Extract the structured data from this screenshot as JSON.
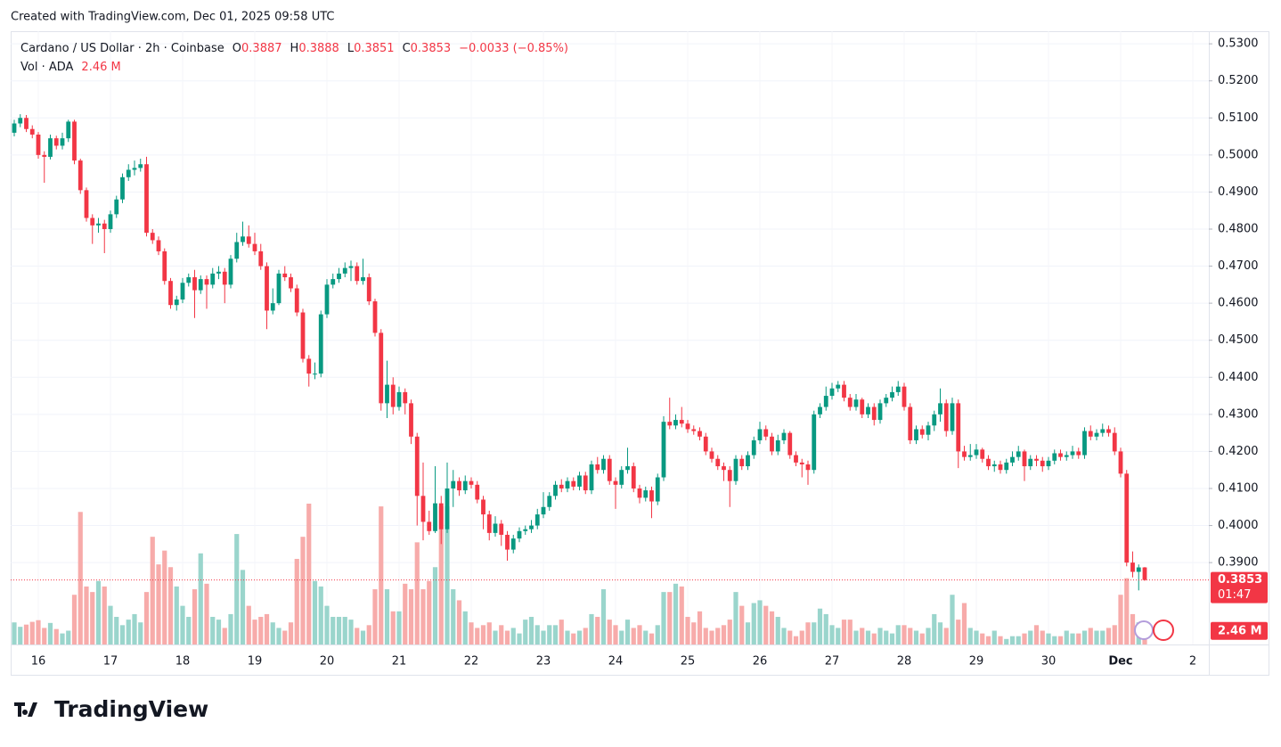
{
  "header": {
    "created": "Created with TradingView.com, Dec 01, 2025 09:58 UTC",
    "symbol": "Cardano / US Dollar · 2h · Coinbase",
    "o_key": "O",
    "o": "0.3887",
    "h_key": "H",
    "h": "0.3888",
    "l_key": "L",
    "l": "0.3851",
    "c_key": "C",
    "c": "0.3853",
    "change": "−0.0033 (−0.85%)",
    "vol_key": "Vol · ADA",
    "vol": "2.46 M"
  },
  "footer": {
    "brand": "TradingView"
  },
  "price_tag": {
    "price": "0.3853",
    "countdown": "01:47",
    "vol": "2.46 M"
  },
  "chart_data": {
    "type": "candlestick",
    "up_color": "#089981",
    "down_color": "#f23645",
    "vol_up_color": "#9ad5cc",
    "vol_down_color": "#f7abaa",
    "grid": true,
    "ylim": [
      0.3679,
      0.5334
    ],
    "yticks": [
      {
        "value": 0.39,
        "label": "0.3900"
      },
      {
        "value": 0.4,
        "label": "0.4000"
      },
      {
        "value": 0.41,
        "label": "0.4100"
      },
      {
        "value": 0.42,
        "label": "0.4200"
      },
      {
        "value": 0.43,
        "label": "0.4300"
      },
      {
        "value": 0.44,
        "label": "0.4400"
      },
      {
        "value": 0.45,
        "label": "0.4500"
      },
      {
        "value": 0.46,
        "label": "0.4600"
      },
      {
        "value": 0.47,
        "label": "0.4700"
      },
      {
        "value": 0.48,
        "label": "0.4800"
      },
      {
        "value": 0.49,
        "label": "0.4900"
      },
      {
        "value": 0.5,
        "label": "0.5000"
      },
      {
        "value": 0.51,
        "label": "0.5100"
      },
      {
        "value": 0.52,
        "label": "0.5200"
      },
      {
        "value": 0.53,
        "label": "0.5300"
      }
    ],
    "xtick_labels": [
      "16",
      "17",
      "18",
      "19",
      "20",
      "21",
      "22",
      "23",
      "24",
      "25",
      "26",
      "27",
      "28",
      "29",
      "30",
      "Dec",
      "2"
    ],
    "open": [
      0.506,
      0.5085,
      0.51,
      0.507,
      0.5055,
      0.5,
      0.4995,
      0.5045,
      0.5025,
      0.5045,
      0.509,
      0.4985,
      0.4905,
      0.483,
      0.481,
      0.4815,
      0.48,
      0.484,
      0.488,
      0.494,
      0.496,
      0.4965,
      0.4975,
      0.479,
      0.477,
      0.474,
      0.466,
      0.4595,
      0.461,
      0.4655,
      0.467,
      0.4635,
      0.4665,
      0.465,
      0.468,
      0.4685,
      0.465,
      0.472,
      0.4765,
      0.478,
      0.476,
      0.474,
      0.47,
      0.458,
      0.46,
      0.468,
      0.467,
      0.464,
      0.4575,
      0.445,
      0.441,
      0.441,
      0.457,
      0.465,
      0.4665,
      0.468,
      0.4695,
      0.47,
      0.466,
      0.467,
      0.4605,
      0.452,
      0.433,
      0.438,
      0.432,
      0.436,
      0.433,
      0.424,
      0.408,
      0.401,
      0.3985,
      0.406,
      0.399,
      0.41,
      0.412,
      0.4095,
      0.412,
      0.411,
      0.407,
      0.403,
      0.398,
      0.4005,
      0.3975,
      0.3935,
      0.3965,
      0.3985,
      0.399,
      0.4,
      0.403,
      0.405,
      0.408,
      0.411,
      0.41,
      0.412,
      0.4105,
      0.4135,
      0.4095,
      0.4165,
      0.415,
      0.418,
      0.412,
      0.411,
      0.415,
      0.416,
      0.41,
      0.4075,
      0.4095,
      0.4065,
      0.413,
      0.428,
      0.427,
      0.4285,
      0.4275,
      0.426,
      0.4255,
      0.424,
      0.42,
      0.418,
      0.416,
      0.415,
      0.412,
      0.418,
      0.416,
      0.419,
      0.423,
      0.426,
      0.424,
      0.42,
      0.423,
      0.425,
      0.419,
      0.417,
      0.4165,
      0.415,
      0.43,
      0.432,
      0.435,
      0.437,
      0.438,
      0.4345,
      0.432,
      0.434,
      0.43,
      0.432,
      0.4285,
      0.433,
      0.4345,
      0.436,
      0.4375,
      0.432,
      0.423,
      0.426,
      0.4245,
      0.427,
      0.43,
      0.433,
      0.4255,
      0.433,
      0.42,
      0.4185,
      0.419,
      0.4205,
      0.418,
      0.416,
      0.4165,
      0.415,
      0.417,
      0.4185,
      0.42,
      0.416,
      0.418,
      0.4175,
      0.416,
      0.4175,
      0.4195,
      0.4185,
      0.419,
      0.42,
      0.419,
      0.4255,
      0.424,
      0.425,
      0.426,
      0.425,
      0.42,
      0.414,
      0.39,
      0.3875,
      0.3887
    ],
    "high": [
      0.5095,
      0.511,
      0.5108,
      0.508,
      0.5062,
      0.501,
      0.5055,
      0.5052,
      0.506,
      0.5095,
      0.5095,
      0.499,
      0.4912,
      0.484,
      0.483,
      0.4825,
      0.485,
      0.489,
      0.495,
      0.4975,
      0.4985,
      0.499,
      0.4995,
      0.48,
      0.478,
      0.4748,
      0.4668,
      0.462,
      0.4668,
      0.468,
      0.469,
      0.4675,
      0.4675,
      0.4695,
      0.47,
      0.4695,
      0.473,
      0.479,
      0.482,
      0.481,
      0.479,
      0.476,
      0.471,
      0.464,
      0.469,
      0.47,
      0.468,
      0.465,
      0.4585,
      0.446,
      0.444,
      0.458,
      0.4665,
      0.468,
      0.4695,
      0.471,
      0.4715,
      0.471,
      0.472,
      0.468,
      0.4612,
      0.453,
      0.4445,
      0.44,
      0.4375,
      0.437,
      0.434,
      0.425,
      0.417,
      0.404,
      0.416,
      0.408,
      0.417,
      0.415,
      0.413,
      0.4135,
      0.413,
      0.412,
      0.408,
      0.404,
      0.4025,
      0.4015,
      0.3985,
      0.3975,
      0.3995,
      0.4,
      0.4015,
      0.4045,
      0.409,
      0.409,
      0.412,
      0.4125,
      0.413,
      0.413,
      0.4145,
      0.4145,
      0.4175,
      0.4185,
      0.419,
      0.419,
      0.413,
      0.416,
      0.421,
      0.417,
      0.411,
      0.4105,
      0.4105,
      0.414,
      0.4295,
      0.4345,
      0.43,
      0.432,
      0.4285,
      0.427,
      0.4265,
      0.425,
      0.421,
      0.419,
      0.417,
      0.416,
      0.419,
      0.419,
      0.42,
      0.424,
      0.428,
      0.427,
      0.425,
      0.4245,
      0.426,
      0.4255,
      0.42,
      0.418,
      0.4175,
      0.431,
      0.433,
      0.4375,
      0.4385,
      0.439,
      0.439,
      0.4355,
      0.4355,
      0.4345,
      0.433,
      0.433,
      0.434,
      0.4355,
      0.4375,
      0.439,
      0.4385,
      0.433,
      0.427,
      0.427,
      0.428,
      0.431,
      0.437,
      0.434,
      0.4345,
      0.434,
      0.4215,
      0.422,
      0.422,
      0.421,
      0.419,
      0.4175,
      0.4175,
      0.418,
      0.42,
      0.4215,
      0.4205,
      0.419,
      0.419,
      0.4185,
      0.4185,
      0.4205,
      0.4205,
      0.42,
      0.4215,
      0.421,
      0.4265,
      0.427,
      0.426,
      0.4275,
      0.427,
      0.4265,
      0.421,
      0.415,
      0.393,
      0.3895,
      0.3888
    ],
    "low": [
      0.505,
      0.5075,
      0.5062,
      0.5045,
      0.499,
      0.4925,
      0.4988,
      0.5015,
      0.5015,
      0.5035,
      0.4975,
      0.4895,
      0.482,
      0.476,
      0.479,
      0.4735,
      0.479,
      0.483,
      0.487,
      0.493,
      0.4945,
      0.4955,
      0.478,
      0.476,
      0.473,
      0.465,
      0.4585,
      0.458,
      0.46,
      0.4645,
      0.456,
      0.4625,
      0.4585,
      0.464,
      0.4665,
      0.46,
      0.464,
      0.471,
      0.4755,
      0.475,
      0.473,
      0.469,
      0.453,
      0.457,
      0.4595,
      0.466,
      0.463,
      0.4565,
      0.444,
      0.4375,
      0.4395,
      0.44,
      0.456,
      0.464,
      0.4655,
      0.467,
      0.466,
      0.465,
      0.465,
      0.4595,
      0.451,
      0.431,
      0.429,
      0.43,
      0.431,
      0.43,
      0.422,
      0.4,
      0.396,
      0.3975,
      0.398,
      0.395,
      0.398,
      0.405,
      0.408,
      0.4085,
      0.41,
      0.406,
      0.399,
      0.396,
      0.397,
      0.3945,
      0.3905,
      0.3925,
      0.3955,
      0.3975,
      0.398,
      0.399,
      0.402,
      0.404,
      0.407,
      0.409,
      0.409,
      0.4095,
      0.4095,
      0.4085,
      0.4085,
      0.414,
      0.414,
      0.411,
      0.4045,
      0.41,
      0.414,
      0.409,
      0.406,
      0.4065,
      0.402,
      0.4055,
      0.412,
      0.426,
      0.426,
      0.4265,
      0.425,
      0.4245,
      0.423,
      0.419,
      0.417,
      0.415,
      0.412,
      0.405,
      0.411,
      0.415,
      0.415,
      0.418,
      0.422,
      0.423,
      0.419,
      0.419,
      0.422,
      0.418,
      0.416,
      0.413,
      0.411,
      0.414,
      0.429,
      0.431,
      0.434,
      0.436,
      0.4335,
      0.431,
      0.431,
      0.429,
      0.429,
      0.427,
      0.4275,
      0.432,
      0.4335,
      0.435,
      0.431,
      0.422,
      0.422,
      0.4235,
      0.423,
      0.4255,
      0.428,
      0.424,
      0.4245,
      0.4155,
      0.4175,
      0.4175,
      0.418,
      0.417,
      0.415,
      0.4145,
      0.414,
      0.414,
      0.416,
      0.4175,
      0.412,
      0.415,
      0.416,
      0.4145,
      0.415,
      0.4165,
      0.4175,
      0.4175,
      0.418,
      0.418,
      0.418,
      0.423,
      0.423,
      0.424,
      0.424,
      0.419,
      0.413,
      0.389,
      0.386,
      0.3825,
      0.3851
    ],
    "close": [
      0.5085,
      0.51,
      0.507,
      0.5055,
      0.5,
      0.4995,
      0.5045,
      0.5025,
      0.5045,
      0.509,
      0.4985,
      0.4905,
      0.483,
      0.481,
      0.4815,
      0.48,
      0.484,
      0.488,
      0.494,
      0.496,
      0.4965,
      0.4975,
      0.479,
      0.477,
      0.474,
      0.466,
      0.4595,
      0.461,
      0.4655,
      0.467,
      0.4635,
      0.4665,
      0.465,
      0.468,
      0.4685,
      0.465,
      0.472,
      0.4765,
      0.478,
      0.476,
      0.474,
      0.47,
      0.458,
      0.46,
      0.468,
      0.467,
      0.464,
      0.4575,
      0.445,
      0.441,
      0.441,
      0.457,
      0.465,
      0.4665,
      0.468,
      0.4695,
      0.47,
      0.466,
      0.467,
      0.4605,
      0.452,
      0.433,
      0.438,
      0.432,
      0.436,
      0.433,
      0.424,
      0.408,
      0.401,
      0.3985,
      0.406,
      0.399,
      0.41,
      0.412,
      0.4095,
      0.412,
      0.411,
      0.407,
      0.403,
      0.398,
      0.4005,
      0.3975,
      0.3935,
      0.3965,
      0.3985,
      0.399,
      0.4,
      0.403,
      0.405,
      0.408,
      0.411,
      0.41,
      0.412,
      0.4105,
      0.4135,
      0.4095,
      0.4165,
      0.415,
      0.418,
      0.412,
      0.411,
      0.415,
      0.416,
      0.41,
      0.4075,
      0.4095,
      0.4065,
      0.413,
      0.428,
      0.427,
      0.4285,
      0.4275,
      0.426,
      0.4255,
      0.424,
      0.42,
      0.418,
      0.416,
      0.415,
      0.412,
      0.418,
      0.416,
      0.419,
      0.423,
      0.426,
      0.424,
      0.42,
      0.423,
      0.425,
      0.419,
      0.417,
      0.4165,
      0.415,
      0.43,
      0.432,
      0.435,
      0.437,
      0.438,
      0.4345,
      0.432,
      0.434,
      0.43,
      0.432,
      0.4285,
      0.433,
      0.4345,
      0.436,
      0.4375,
      0.432,
      0.423,
      0.426,
      0.4245,
      0.427,
      0.43,
      0.433,
      0.4255,
      0.433,
      0.42,
      0.4185,
      0.419,
      0.4205,
      0.418,
      0.416,
      0.4165,
      0.415,
      0.417,
      0.4185,
      0.42,
      0.416,
      0.418,
      0.4175,
      0.416,
      0.4175,
      0.4195,
      0.4185,
      0.419,
      0.42,
      0.419,
      0.4255,
      0.424,
      0.425,
      0.426,
      0.425,
      0.42,
      0.414,
      0.39,
      0.3875,
      0.3887,
      0.3853
    ],
    "volume": [
      4.0,
      3.2,
      3.6,
      4.1,
      4.4,
      3.0,
      3.9,
      2.8,
      2.0,
      2.5,
      9.0,
      24.0,
      10.5,
      9.5,
      11.5,
      10.5,
      7.0,
      5.0,
      3.5,
      4.5,
      5.5,
      4.0,
      9.5,
      19.5,
      14.5,
      17.0,
      14.0,
      10.5,
      7.0,
      5.0,
      10.0,
      16.5,
      11.0,
      5.0,
      4.5,
      3.0,
      5.5,
      20.0,
      13.5,
      7.0,
      4.5,
      5.0,
      5.5,
      4.0,
      3.0,
      2.5,
      4.0,
      15.5,
      19.5,
      25.5,
      11.5,
      10.5,
      7.0,
      5.0,
      5.0,
      5.0,
      4.5,
      3.0,
      2.5,
      3.5,
      10.0,
      25.0,
      10.0,
      6.0,
      6.0,
      11.0,
      10.0,
      18.5,
      10.0,
      11.5,
      14.0,
      25.0,
      25.0,
      10.0,
      8.0,
      6.0,
      4.0,
      3.0,
      3.5,
      4.0,
      2.5,
      3.5,
      2.5,
      3.0,
      2.0,
      4.5,
      5.0,
      3.5,
      2.5,
      3.5,
      3.5,
      4.5,
      2.5,
      2.0,
      2.5,
      3.0,
      5.5,
      5.0,
      10.0,
      4.5,
      3.5,
      2.5,
      4.5,
      3.0,
      3.5,
      2.5,
      2.0,
      3.5,
      9.5,
      9.5,
      11.0,
      10.5,
      5.0,
      4.0,
      6.0,
      3.0,
      2.5,
      3.0,
      3.5,
      4.5,
      9.5,
      7.0,
      4.0,
      7.5,
      8.0,
      7.0,
      6.0,
      5.0,
      3.0,
      2.5,
      1.5,
      2.5,
      4.0,
      4.0,
      6.5,
      5.5,
      3.5,
      3.0,
      4.5,
      4.5,
      2.5,
      3.0,
      2.5,
      2.0,
      3.0,
      2.5,
      2.0,
      3.5,
      3.5,
      3.0,
      2.5,
      2.0,
      3.0,
      5.5,
      4.0,
      3.0,
      9.0,
      4.5,
      7.5,
      3.0,
      2.5,
      2.0,
      1.5,
      2.5,
      1.5,
      1.0,
      1.5,
      1.5,
      2.0,
      2.5,
      3.5,
      2.5,
      2.0,
      1.5,
      1.5,
      2.5,
      2.0,
      2.0,
      2.5,
      3.0,
      2.5,
      2.5,
      3.0,
      3.5,
      9.0,
      12.0,
      5.5,
      4.0,
      2.46
    ]
  }
}
